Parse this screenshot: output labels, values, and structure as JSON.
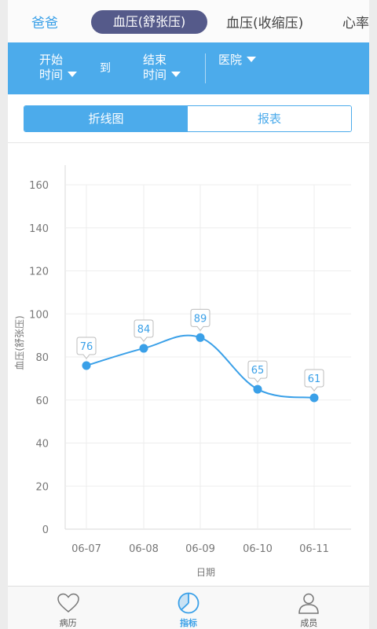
{
  "top_tabs": {
    "person": "爸爸",
    "items": [
      {
        "label": "血压(舒张压)",
        "active": true
      },
      {
        "label": "血压(收缩压)",
        "active": false
      },
      {
        "label": "心率",
        "active": false
      }
    ]
  },
  "filter": {
    "start_line1": "开始",
    "start_line2": "时间",
    "to": "到",
    "end_line1": "结束",
    "end_line2": "时间",
    "hospital": "医院"
  },
  "view_tabs": {
    "line_chart": "折线图",
    "report": "报表",
    "active": "line_chart"
  },
  "chart_data": {
    "type": "line",
    "xlabel": "日期",
    "ylabel": "血压(舒张压)",
    "categories": [
      "06-07",
      "06-08",
      "06-09",
      "06-10",
      "06-11"
    ],
    "values": [
      76,
      84,
      89,
      65,
      61
    ],
    "ylim": [
      0,
      160
    ],
    "yticks": [
      0,
      20,
      40,
      60,
      80,
      100,
      120,
      140,
      160
    ],
    "grid": true,
    "color": "#3aa0e8"
  },
  "bottom_nav": {
    "items": [
      {
        "label": "病历",
        "icon": "heart-icon",
        "active": false
      },
      {
        "label": "指标",
        "icon": "pie-chart-icon",
        "active": true
      },
      {
        "label": "成员",
        "icon": "person-icon",
        "active": false
      }
    ]
  },
  "colors": {
    "accent": "#4cabeb",
    "active_tab_bg": "#555a8a",
    "line": "#3aa0e8"
  }
}
